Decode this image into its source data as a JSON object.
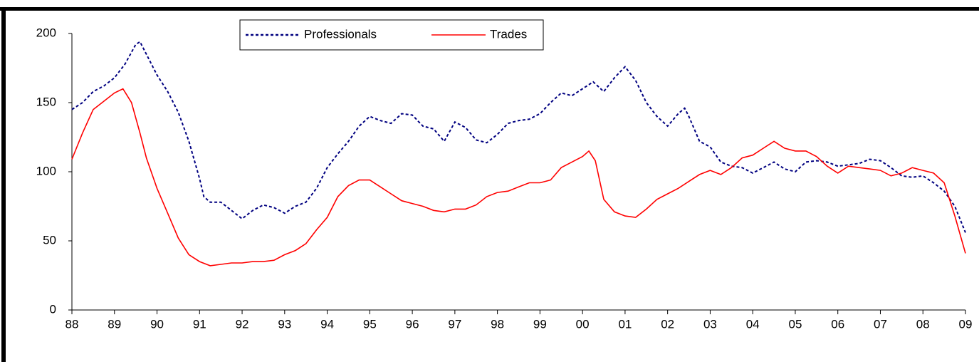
{
  "chart_data": {
    "type": "line",
    "xlim": [
      1988,
      2009
    ],
    "ylim": [
      0,
      200
    ],
    "yticks": [
      0,
      50,
      100,
      150,
      200
    ],
    "xticks": [
      {
        "value": 1988,
        "label": "88"
      },
      {
        "value": 1989,
        "label": "89"
      },
      {
        "value": 1990,
        "label": "90"
      },
      {
        "value": 1991,
        "label": "91"
      },
      {
        "value": 1992,
        "label": "92"
      },
      {
        "value": 1993,
        "label": "93"
      },
      {
        "value": 1994,
        "label": "94"
      },
      {
        "value": 1995,
        "label": "95"
      },
      {
        "value": 1996,
        "label": "96"
      },
      {
        "value": 1997,
        "label": "97"
      },
      {
        "value": 1998,
        "label": "98"
      },
      {
        "value": 1999,
        "label": "99"
      },
      {
        "value": 2000,
        "label": "00"
      },
      {
        "value": 2001,
        "label": "01"
      },
      {
        "value": 2002,
        "label": "02"
      },
      {
        "value": 2003,
        "label": "03"
      },
      {
        "value": 2004,
        "label": "04"
      },
      {
        "value": 2005,
        "label": "05"
      },
      {
        "value": 2006,
        "label": "06"
      },
      {
        "value": 2007,
        "label": "07"
      },
      {
        "value": 2008,
        "label": "08"
      },
      {
        "value": 2009,
        "label": "09"
      }
    ],
    "series": [
      {
        "name": "Professionals",
        "color": "#000080",
        "dashed": true,
        "x": [
          1988,
          1988.25,
          1988.5,
          1988.75,
          1989,
          1989.25,
          1989.5,
          1989.6,
          1989.75,
          1990,
          1990.25,
          1990.5,
          1990.75,
          1991,
          1991.1,
          1991.25,
          1991.5,
          1991.75,
          1992,
          1992.25,
          1992.5,
          1992.75,
          1993,
          1993.25,
          1993.5,
          1993.75,
          1994,
          1994.25,
          1994.5,
          1994.75,
          1995,
          1995.25,
          1995.5,
          1995.75,
          1996,
          1996.25,
          1996.5,
          1996.75,
          1997,
          1997.25,
          1997.5,
          1997.75,
          1998,
          1998.25,
          1998.5,
          1998.75,
          1999,
          1999.25,
          1999.5,
          1999.75,
          2000,
          2000.25,
          2000.5,
          2000.75,
          2001,
          2001.25,
          2001.5,
          2001.75,
          2002,
          2002.25,
          2002.4,
          2002.5,
          2002.75,
          2003,
          2003.25,
          2003.5,
          2003.75,
          2004,
          2004.25,
          2004.5,
          2004.75,
          2005,
          2005.25,
          2005.5,
          2005.75,
          2006,
          2006.25,
          2006.5,
          2006.75,
          2007,
          2007.25,
          2007.5,
          2007.75,
          2008,
          2008.25,
          2008.5,
          2008.75,
          2009
        ],
        "values": [
          145,
          150,
          158,
          162,
          168,
          178,
          192,
          194,
          185,
          170,
          158,
          143,
          122,
          95,
          82,
          78,
          78,
          72,
          66,
          72,
          76,
          74,
          70,
          75,
          78,
          88,
          103,
          113,
          122,
          133,
          140,
          137,
          135,
          142,
          141,
          133,
          131,
          122,
          136,
          132,
          123,
          121,
          127,
          135,
          137,
          138,
          142,
          150,
          157,
          155,
          160,
          165,
          158,
          168,
          176,
          166,
          150,
          140,
          133,
          142,
          146,
          140,
          122,
          118,
          107,
          104,
          103,
          99,
          103,
          107,
          102,
          100,
          107,
          108,
          107,
          104,
          105,
          106,
          109,
          108,
          103,
          97,
          96,
          97,
          92,
          86,
          75,
          56
        ]
      },
      {
        "name": "Trades",
        "color": "#ff0000",
        "dashed": false,
        "x": [
          1988,
          1988.25,
          1988.5,
          1988.75,
          1989,
          1989.2,
          1989.4,
          1989.6,
          1989.75,
          1990,
          1990.25,
          1990.5,
          1990.75,
          1991,
          1991.25,
          1991.5,
          1991.75,
          1992,
          1992.25,
          1992.5,
          1992.75,
          1993,
          1993.25,
          1993.5,
          1993.75,
          1994,
          1994.25,
          1994.5,
          1994.75,
          1995,
          1995.25,
          1995.5,
          1995.75,
          1996,
          1996.25,
          1996.5,
          1996.75,
          1997,
          1997.25,
          1997.5,
          1997.75,
          1998,
          1998.25,
          1998.5,
          1998.75,
          1999,
          1999.25,
          1999.5,
          1999.75,
          2000,
          2000.15,
          2000.3,
          2000.5,
          2000.75,
          2001,
          2001.25,
          2001.5,
          2001.75,
          2002,
          2002.25,
          2002.5,
          2002.75,
          2003,
          2003.25,
          2003.5,
          2003.75,
          2004,
          2004.25,
          2004.5,
          2004.75,
          2005,
          2005.25,
          2005.5,
          2005.75,
          2006,
          2006.25,
          2006.5,
          2006.75,
          2007,
          2007.25,
          2007.5,
          2007.75,
          2008,
          2008.25,
          2008.5,
          2008.75,
          2009
        ],
        "values": [
          109,
          128,
          145,
          151,
          157,
          160,
          150,
          128,
          110,
          88,
          70,
          52,
          40,
          35,
          32,
          33,
          34,
          34,
          35,
          35,
          36,
          40,
          43,
          48,
          58,
          67,
          82,
          90,
          94,
          94,
          89,
          84,
          79,
          77,
          75,
          72,
          71,
          73,
          73,
          76,
          82,
          85,
          86,
          89,
          92,
          92,
          94,
          103,
          107,
          111,
          115,
          108,
          80,
          71,
          68,
          67,
          73,
          80,
          84,
          88,
          93,
          98,
          101,
          98,
          103,
          110,
          112,
          117,
          122,
          117,
          115,
          115,
          111,
          104,
          99,
          104,
          103,
          102,
          101,
          97,
          99,
          103,
          101,
          99,
          92,
          68,
          41
        ]
      }
    ]
  }
}
